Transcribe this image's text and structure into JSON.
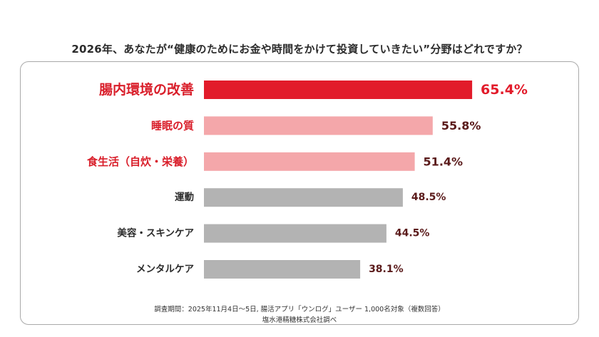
{
  "title": "2026年、あなたが“健康のためにお金や時間をかけて投資していきたい”分野はどれですか？",
  "footer": {
    "line1": "調査期間：2025年11月4日〜5日, 腸活アプリ「ウンログ」ユーザー 1,000名対象（複数回答）",
    "line2": "塩水港精糖株式会社調べ"
  },
  "colors": {
    "primary": "#e21b2a",
    "secondary": "#f4a7aa",
    "neutral": "#b3b3b3",
    "label_red": "#d91e2a",
    "label_dark": "#2b2b2b",
    "value_dark": "#5a1a1a"
  },
  "chart_data": {
    "type": "bar",
    "orientation": "horizontal",
    "categories": [
      "腸内環境の改善",
      "睡眠の質",
      "食生活（自炊・栄養）",
      "運動",
      "美容・スキンケア",
      "メンタルケア"
    ],
    "values": [
      65.4,
      55.8,
      51.4,
      48.5,
      44.5,
      38.1
    ],
    "value_labels": [
      "65.4%",
      "55.8%",
      "51.4%",
      "48.5%",
      "44.5%",
      "38.1%"
    ],
    "bar_colors": [
      "primary",
      "secondary",
      "secondary",
      "neutral",
      "neutral",
      "neutral"
    ],
    "label_colors": [
      "label_red",
      "label_red",
      "label_red",
      "label_dark",
      "label_dark",
      "label_dark"
    ],
    "value_colors": [
      "primary",
      "value_dark",
      "value_dark",
      "value_dark",
      "value_dark",
      "value_dark"
    ],
    "emphasis": [
      true,
      false,
      false,
      false,
      false,
      false
    ],
    "xlim": [
      0,
      100
    ],
    "grid": false,
    "legend": "none",
    "xlabel": "",
    "ylabel": ""
  }
}
